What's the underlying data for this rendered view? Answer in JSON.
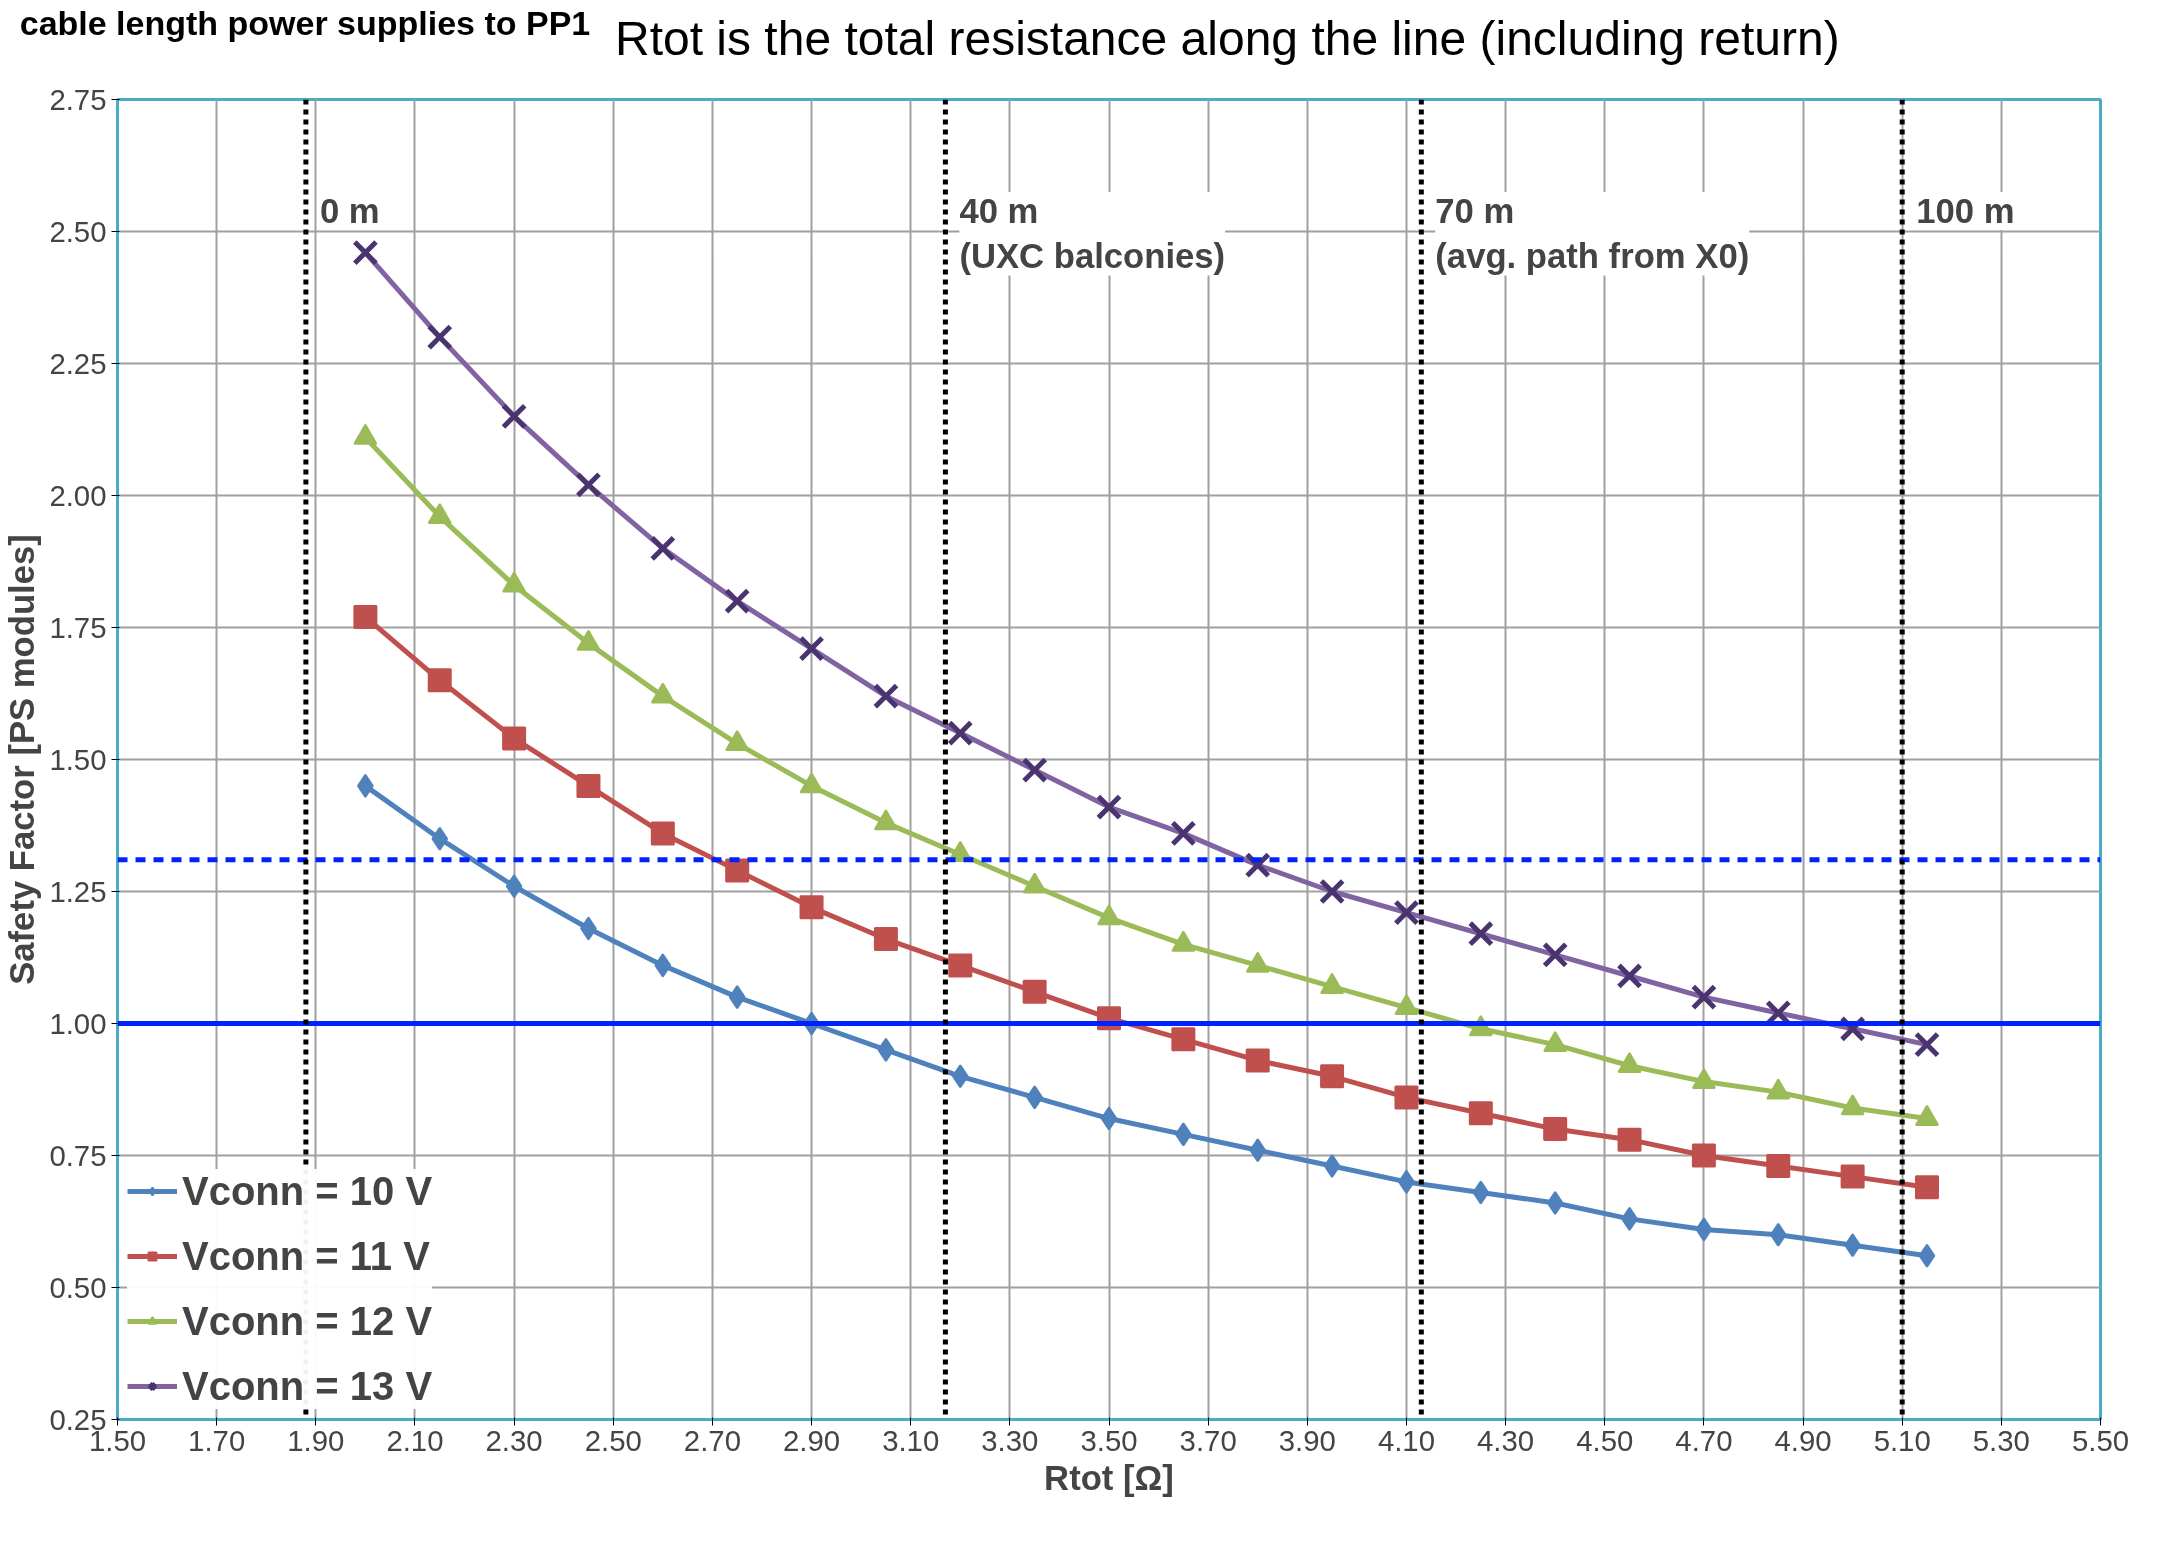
{
  "chart_data": {
    "type": "line",
    "xlabel": "Rtot [Ω]",
    "ylabel": "Safety Factor [PS modules]",
    "annotations": [
      "cable length power supplies to PP1",
      "Rtot is the total resistance along the line (including return)"
    ],
    "x": [
      2.0,
      2.15,
      2.3,
      2.45,
      2.6,
      2.75,
      2.9,
      3.05,
      3.2,
      3.35,
      3.5,
      3.65,
      3.8,
      3.95,
      4.1,
      4.25,
      4.4,
      4.55,
      4.7,
      4.85,
      5.0,
      5.15
    ],
    "series": [
      {
        "name": "Vconn = 10 V",
        "color": "#4f81bd",
        "marker": "diamond",
        "values": [
          1.45,
          1.35,
          1.26,
          1.18,
          1.11,
          1.05,
          1.0,
          0.95,
          0.9,
          0.86,
          0.82,
          0.79,
          0.76,
          0.73,
          0.7,
          0.68,
          0.66,
          0.63,
          0.61,
          0.6,
          0.58,
          0.56
        ]
      },
      {
        "name": "Vconn = 11 V",
        "color": "#c0504d",
        "marker": "square",
        "values": [
          1.77,
          1.65,
          1.54,
          1.45,
          1.36,
          1.29,
          1.22,
          1.16,
          1.11,
          1.06,
          1.01,
          0.97,
          0.93,
          0.9,
          0.86,
          0.83,
          0.8,
          0.78,
          0.75,
          0.73,
          0.71,
          0.69
        ]
      },
      {
        "name": "Vconn = 12 V",
        "color": "#9bbb59",
        "marker": "triangle",
        "values": [
          2.11,
          1.96,
          1.83,
          1.72,
          1.62,
          1.53,
          1.45,
          1.38,
          1.32,
          1.26,
          1.2,
          1.15,
          1.11,
          1.07,
          1.03,
          0.99,
          0.96,
          0.92,
          0.89,
          0.87,
          0.84,
          0.82
        ]
      },
      {
        "name": "Vconn = 13 V",
        "color": "#8064a2",
        "marker": "cross",
        "values": [
          2.46,
          2.3,
          2.15,
          2.02,
          1.9,
          1.8,
          1.71,
          1.62,
          1.55,
          1.48,
          1.41,
          1.36,
          1.3,
          1.25,
          1.21,
          1.17,
          1.13,
          1.09,
          1.05,
          1.02,
          0.99,
          0.96
        ]
      }
    ],
    "xlim": [
      1.5,
      5.5
    ],
    "xticks": [
      {
        "value": 1.5,
        "label": "1.50"
      },
      {
        "value": 1.7,
        "label": "1.70"
      },
      {
        "value": 1.9,
        "label": "1.90"
      },
      {
        "value": 2.1,
        "label": "2.10"
      },
      {
        "value": 2.3,
        "label": "2.30"
      },
      {
        "value": 2.5,
        "label": "2.50"
      },
      {
        "value": 2.7,
        "label": "2.70"
      },
      {
        "value": 2.9,
        "label": "2.90"
      },
      {
        "value": 3.1,
        "label": "3.10"
      },
      {
        "value": 3.3,
        "label": "3.30"
      },
      {
        "value": 3.5,
        "label": "3.50"
      },
      {
        "value": 3.7,
        "label": "3.70"
      },
      {
        "value": 3.9,
        "label": "3.90"
      },
      {
        "value": 4.1,
        "label": "4.10"
      },
      {
        "value": 4.3,
        "label": "4.30"
      },
      {
        "value": 4.5,
        "label": "4.50"
      },
      {
        "value": 4.7,
        "label": "4.70"
      },
      {
        "value": 4.9,
        "label": "4.90"
      },
      {
        "value": 5.1,
        "label": "5.10"
      },
      {
        "value": 5.3,
        "label": "5.30"
      },
      {
        "value": 5.5,
        "label": "5.50"
      }
    ],
    "ylim": [
      0.25,
      2.75
    ],
    "yticks": [
      {
        "value": 0.25,
        "label": "0.25"
      },
      {
        "value": 0.5,
        "label": "0.50"
      },
      {
        "value": 0.75,
        "label": "0.75"
      },
      {
        "value": 1.0,
        "label": "1.00"
      },
      {
        "value": 1.25,
        "label": "1.25"
      },
      {
        "value": 1.5,
        "label": "1.50"
      },
      {
        "value": 1.75,
        "label": "1.75"
      },
      {
        "value": 2.0,
        "label": "2.00"
      },
      {
        "value": 2.25,
        "label": "2.25"
      },
      {
        "value": 2.5,
        "label": "2.50"
      },
      {
        "value": 2.75,
        "label": "2.75"
      }
    ],
    "ref_lines": [
      {
        "axis": "y",
        "value": 1.0,
        "color": "#0022ff",
        "line_style": "solid"
      },
      {
        "axis": "y",
        "value": 1.31,
        "color": "#0022ff",
        "line_style": "dashed"
      },
      {
        "axis": "x",
        "value": 1.88,
        "label": "0 m",
        "color": "#000000",
        "line_style": "dotted"
      },
      {
        "axis": "x",
        "value": 3.17,
        "label": "40 m\n(UXC balconies)",
        "color": "#000000",
        "line_style": "dotted"
      },
      {
        "axis": "x",
        "value": 4.13,
        "label": "70 m\n(avg. path from X0)",
        "color": "#000000",
        "line_style": "dotted"
      },
      {
        "axis": "x",
        "value": 5.1,
        "label": "100 m",
        "color": "#000000",
        "line_style": "dotted"
      }
    ],
    "grid": true,
    "legend": "bottom left",
    "line_style": "solid"
  }
}
